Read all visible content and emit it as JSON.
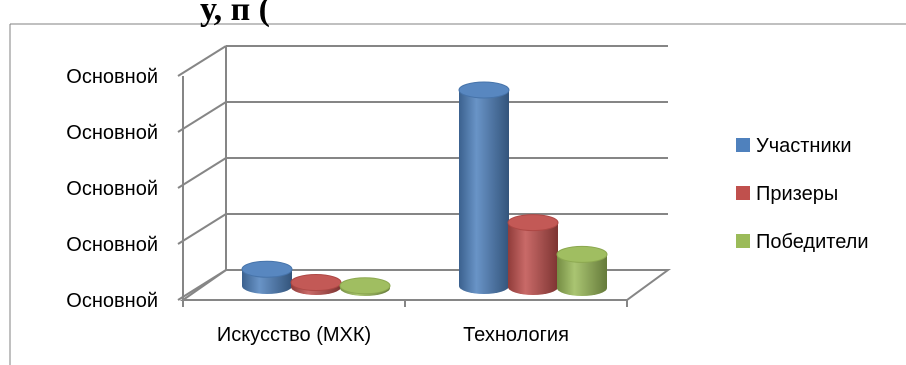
{
  "title_fragment": "у, п (",
  "chart_data": {
    "type": "bar",
    "categories": [
      "Искусство (МХК)",
      "Технология"
    ],
    "y_tick_labels": [
      "Основной",
      "Основной",
      "Основной",
      "Основной",
      "Основной"
    ],
    "ylim": [
      0,
      4
    ],
    "grid": true,
    "legend_position": "right",
    "series": [
      {
        "name": "Участники",
        "color": "#4F81BD",
        "values": [
          0.3,
          3.5
        ]
      },
      {
        "name": "Призеры",
        "color": "#C0504D",
        "values": [
          0.08,
          1.15
        ]
      },
      {
        "name": "Победители",
        "color": "#9BBB59",
        "values": [
          0.04,
          0.6
        ]
      }
    ]
  }
}
